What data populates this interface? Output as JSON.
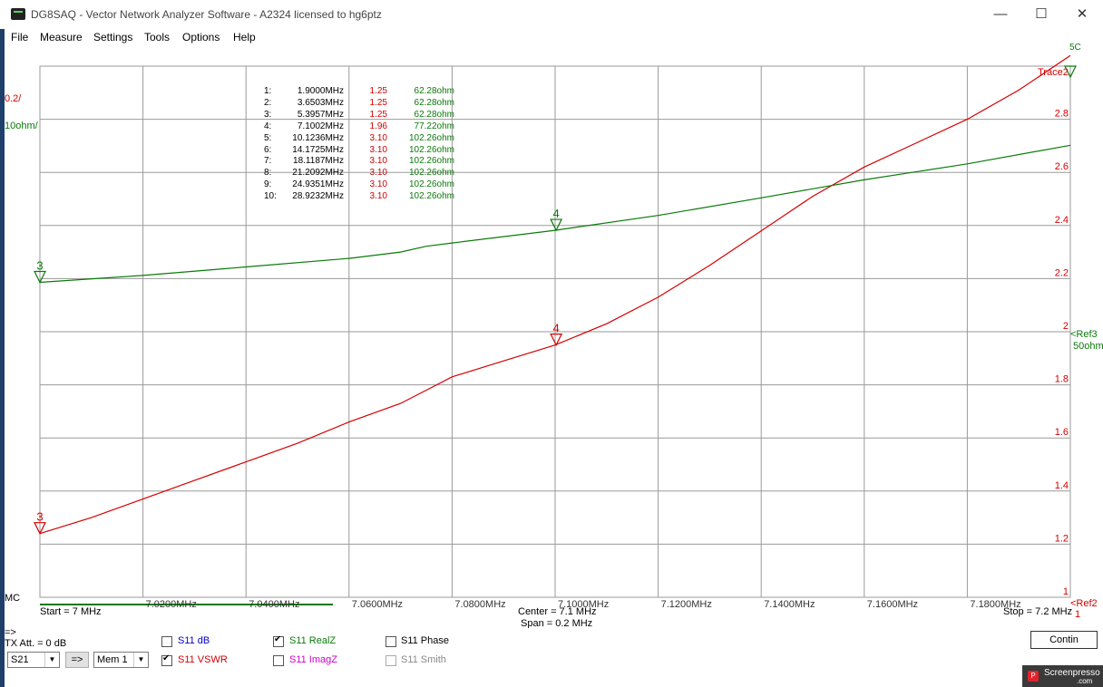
{
  "window": {
    "title": "DG8SAQ  -  Vector Network Analyzer Software  -  A2324 licensed to hg6ptz",
    "minimize_glyph": "—",
    "maximize_glyph": "☐",
    "close_glyph": "✕"
  },
  "menu": [
    "File",
    "Measure",
    "Settings",
    "Tools",
    "Options",
    "Help"
  ],
  "chart": {
    "left_scale_red": "0.2/",
    "left_scale_green": "10ohm/",
    "right_ticks": [
      "2.8",
      "2.6",
      "2.4",
      "2.2",
      "2",
      "1.8",
      "1.6",
      "1.4",
      "1.2",
      "1"
    ],
    "x_ticks": [
      "7.0200MHz",
      "7.0400MHz",
      "7.0600MHz",
      "7.0800MHz",
      "7.1000MHz",
      "7.1200MHz",
      "7.1400MHz",
      "7.1600MHz",
      "7.1800MHz"
    ],
    "trace2_label": "Trace2",
    "ref3_label": "<Ref3",
    "ref3_value": "50ohm",
    "ref2_label": "<Ref2",
    "top_marker_label": "5C",
    "mc_label": "MC",
    "start_label": "Start = 7 MHz",
    "center_label": "Center = 7.1 MHz",
    "span_label": "Span = 0.2 MHz",
    "stop_label": "Stop = 7.2 MHz",
    "bottom_right_one": "1",
    "marker_labels": {
      "left_red": "3",
      "left_green": "3",
      "mid_red": "4",
      "mid_green": "4"
    },
    "colors": {
      "red": "#d40000",
      "green": "#0a7a0a",
      "grid": "#9a9a9a"
    }
  },
  "markers": [
    {
      "n": "1:",
      "freq": "1.9000MHz",
      "vswr": "1.25",
      "z": "62.28ohm"
    },
    {
      "n": "2:",
      "freq": "3.6503MHz",
      "vswr": "1.25",
      "z": "62.28ohm"
    },
    {
      "n": "3:",
      "freq": "5.3957MHz",
      "vswr": "1.25",
      "z": "62.28ohm"
    },
    {
      "n": "4:",
      "freq": "7.1002MHz",
      "vswr": "1.96",
      "z": "77.22ohm"
    },
    {
      "n": "5:",
      "freq": "10.1236MHz",
      "vswr": "3.10",
      "z": "102.26ohm"
    },
    {
      "n": "6:",
      "freq": "14.1725MHz",
      "vswr": "3.10",
      "z": "102.26ohm"
    },
    {
      "n": "7:",
      "freq": "18.1187MHz",
      "vswr": "3.10",
      "z": "102.26ohm"
    },
    {
      "n": "8:",
      "freq": "21.2092MHz",
      "vswr": "3.10",
      "z": "102.26ohm"
    },
    {
      "n": "9:",
      "freq": "24.9351MHz",
      "vswr": "3.10",
      "z": "102.26ohm"
    },
    {
      "n": "10:",
      "freq": "28.9232MHz",
      "vswr": "3.10",
      "z": "102.26ohm"
    }
  ],
  "chart_data": {
    "type": "line",
    "x_unit": "MHz",
    "xlim": [
      7.0,
      7.2
    ],
    "series": [
      {
        "name": "S11 VSWR",
        "x": [
          7.0,
          7.01,
          7.02,
          7.03,
          7.04,
          7.05,
          7.06,
          7.07,
          7.075,
          7.08,
          7.09,
          7.1,
          7.11,
          7.12,
          7.13,
          7.14,
          7.15,
          7.16,
          7.17,
          7.18,
          7.19,
          7.2
        ],
        "y": [
          1.24,
          1.3,
          1.37,
          1.44,
          1.51,
          1.58,
          1.66,
          1.73,
          1.78,
          1.83,
          1.89,
          1.95,
          2.03,
          2.13,
          2.25,
          2.38,
          2.51,
          2.62,
          2.71,
          2.8,
          2.91,
          3.04
        ]
      },
      {
        "name": "S11 Real Z",
        "x": [
          7.0,
          7.02,
          7.04,
          7.06,
          7.07,
          7.075,
          7.08,
          7.1,
          7.12,
          7.14,
          7.16,
          7.18,
          7.2
        ],
        "y": [
          59.3,
          60.6,
          62.2,
          63.8,
          65.0,
          66.1,
          66.7,
          69.1,
          71.9,
          75.2,
          78.6,
          81.6,
          85.1
        ]
      }
    ],
    "vswr_scale": "0.2/",
    "z_scale": "10ohm/",
    "ref2": "1",
    "ref3": "50ohm"
  },
  "bottom": {
    "arrow_hint": "=>",
    "tx_att": "TX Att. = 0 dB",
    "port_select": "S21",
    "go_button": "=>",
    "mem_select": "Mem 1",
    "checkboxes": [
      {
        "label": "S11  dB",
        "checked": false,
        "color": "#0000cc"
      },
      {
        "label": "S11  VSWR",
        "checked": true,
        "color": "#d40000"
      },
      {
        "label": "S11  RealZ",
        "checked": true,
        "color": "#0a7a0a"
      },
      {
        "label": "S11  ImagZ",
        "checked": false,
        "color": "#cc00cc"
      },
      {
        "label": "S11  Phase",
        "checked": false,
        "color": "#000000"
      },
      {
        "label": "S11  Smith",
        "checked": false,
        "color": "#888888"
      }
    ],
    "continuous_button": "Contin",
    "watermark": "Screenpresso",
    "watermark_sub": ".com"
  }
}
